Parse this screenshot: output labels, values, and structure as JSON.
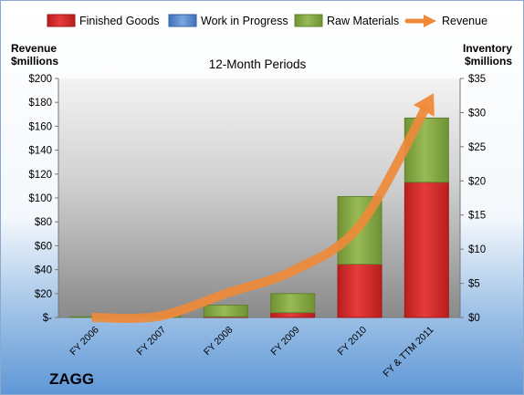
{
  "chart_data": {
    "type": "bar",
    "company": "ZAGG",
    "title": "12-Month Periods",
    "y_left_label": [
      "Revenue",
      "$millions"
    ],
    "y_right_label": [
      "Inventory",
      "$millions"
    ],
    "categories": [
      "FY 2006",
      "FY 2007",
      "FY 2008",
      "FY 2009",
      "FY 2010",
      "FY & TTM 2011"
    ],
    "left_axis": {
      "min": 0,
      "max": 200,
      "ticks": [
        0,
        20,
        40,
        60,
        80,
        100,
        120,
        140,
        160,
        180,
        200
      ],
      "tick_labels": [
        "$-",
        "$20",
        "$40",
        "$60",
        "$80",
        "$100",
        "$120",
        "$140",
        "$160",
        "$180",
        "$200"
      ]
    },
    "right_axis": {
      "min": 0,
      "max": 35,
      "ticks": [
        0,
        5,
        10,
        15,
        20,
        25,
        30,
        35
      ],
      "tick_labels": [
        "$0",
        "$5",
        "$10",
        "$15",
        "$20",
        "$25",
        "$30",
        "$35"
      ]
    },
    "series": [
      {
        "name": "Finished Goods",
        "axis": "right",
        "kind": "stacked-bar",
        "color": "#d62c2c",
        "values": [
          0.0,
          0.0,
          0.1,
          0.7,
          7.8,
          19.8
        ]
      },
      {
        "name": "Work in Progress",
        "axis": "right",
        "kind": "stacked-bar",
        "color": "#5b8fd6",
        "values": [
          0.0,
          0.0,
          0.0,
          0.0,
          0.0,
          0.0
        ]
      },
      {
        "name": "Raw Materials",
        "axis": "right",
        "kind": "stacked-bar",
        "color": "#8fb24a",
        "values": [
          0.1,
          0.3,
          1.7,
          2.8,
          9.9,
          9.4
        ]
      },
      {
        "name": "Revenue",
        "axis": "left",
        "kind": "line",
        "color": "#ee8a3a",
        "values": [
          0,
          1,
          20,
          39,
          77,
          177
        ]
      }
    ],
    "legend_position": "top",
    "grid": false
  }
}
